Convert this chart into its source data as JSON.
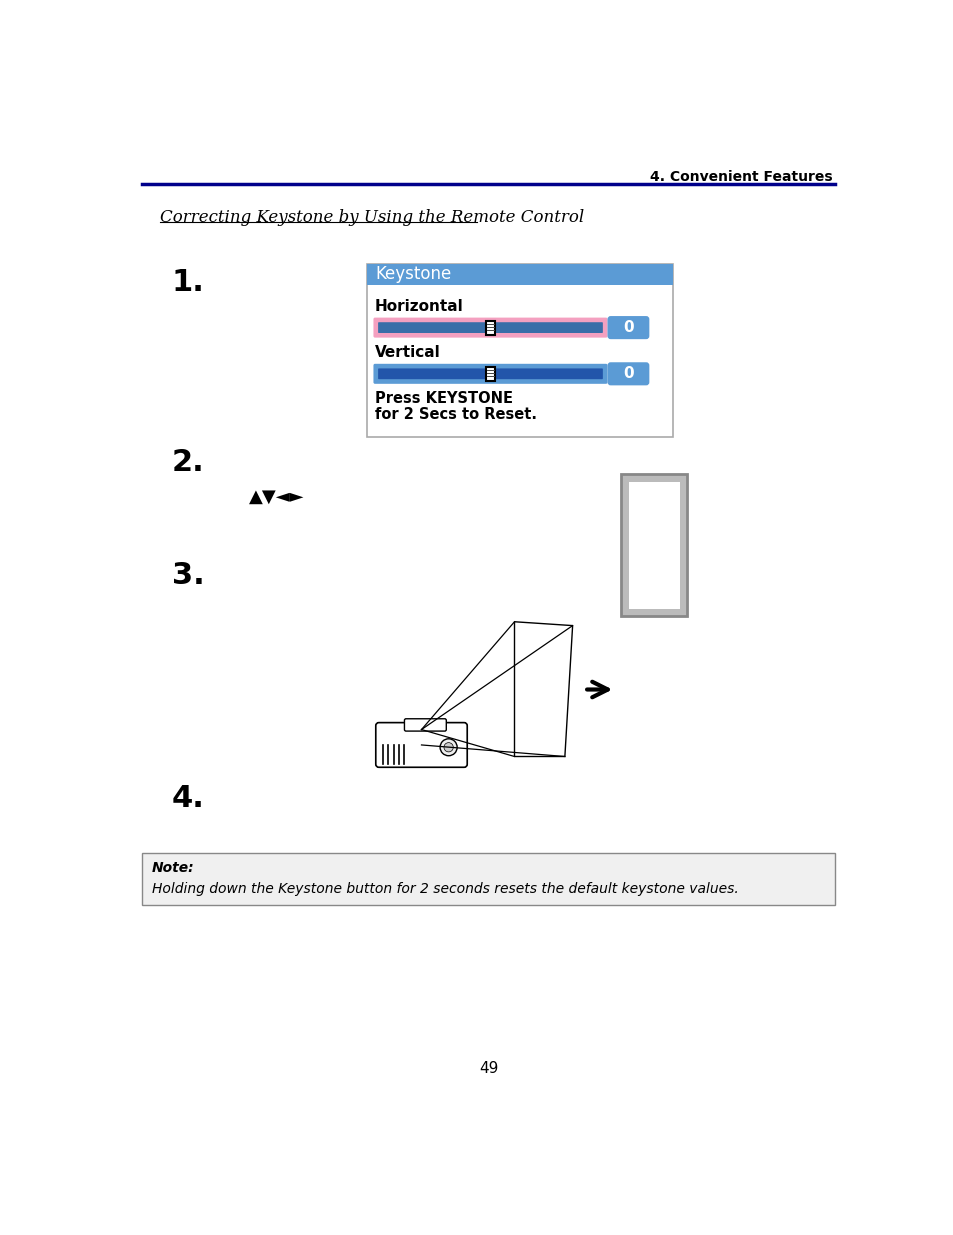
{
  "page_title": "4. Convenient Features",
  "section_title": "Correcting Keystone by Using the Remote Control",
  "step1_label": "1.",
  "step2_label": "2.",
  "step3_label": "3.",
  "step4_label": "4.",
  "keystone_title": "Keystone",
  "horizontal_label": "Horizontal",
  "vertical_label": "Vertical",
  "slider_value": "0",
  "press_text_line1": "Press KEYSTONE",
  "press_text_line2": "for 2 Secs to Reset.",
  "note_bold": "Note:",
  "note_text": "Holding down the Keystone button for 2 seconds resets the default keystone values.",
  "page_number": "49",
  "arrow_symbols": "▲▼◄►",
  "header_line_color": "#00008B",
  "keystone_bg_color": "#5B9BD5",
  "slider_h_bg_color": "#F4A0C0",
  "slider_v_bg_color": "#5B9BD5",
  "slider_rail_color": "#3A6EA8",
  "value_badge_color": "#5B9BD5",
  "box_border_color": "#AAAAAA",
  "note_bg_color": "#F0F0F0",
  "background_color": "#FFFFFF"
}
